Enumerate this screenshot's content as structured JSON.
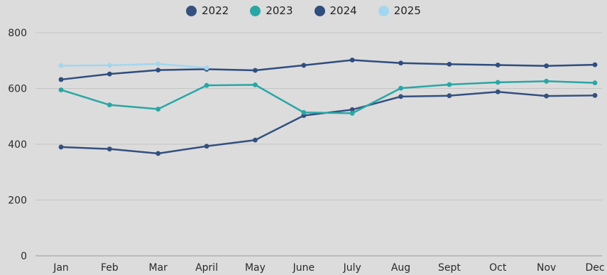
{
  "chart_data": {
    "type": "line",
    "title": "",
    "xlabel": "",
    "ylabel": "",
    "categories": [
      "Jan",
      "Feb",
      "Mar",
      "April",
      "May",
      "June",
      "July",
      "Aug",
      "Sept",
      "Oct",
      "Nov",
      "Dec"
    ],
    "ylim": [
      0,
      800
    ],
    "yticks": [
      0,
      200,
      400,
      600,
      800
    ],
    "grid": true,
    "legend_position": "top-center",
    "series": [
      {
        "name": "2022",
        "color": "#34507f",
        "values": [
          390,
          383,
          367,
          393,
          415,
          503,
          524,
          571,
          574,
          588,
          573,
          575
        ]
      },
      {
        "name": "2023",
        "color": "#2aa6a6",
        "values": [
          595,
          541,
          526,
          611,
          613,
          514,
          511,
          601,
          614,
          622,
          626,
          620
        ]
      },
      {
        "name": "2024",
        "color": "#2f4d7e",
        "values": [
          632,
          652,
          666,
          669,
          665,
          683,
          702,
          691,
          687,
          684,
          681,
          685
        ]
      },
      {
        "name": "2025",
        "color": "#a3d6ef",
        "values": [
          682,
          683,
          688,
          674,
          null,
          null,
          null,
          null,
          null,
          null,
          null,
          null
        ]
      }
    ]
  }
}
